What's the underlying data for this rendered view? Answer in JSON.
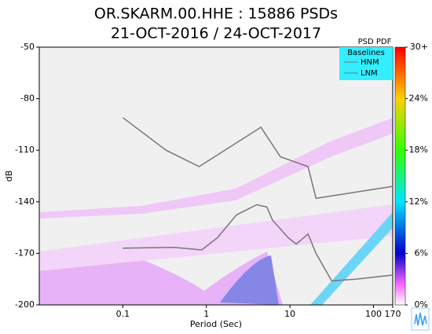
{
  "chart_data": {
    "type": "line",
    "title": "OR.SKARM.00.HHE : 15886 PSDs",
    "subtitle": "21-OCT-2016 / 24-OCT-2017",
    "x_label": "Period (Sec)",
    "y_label": "dB",
    "log_x": true,
    "xlim": [
      0.01,
      170
    ],
    "xticks": [
      0.1,
      1,
      10,
      100,
      170
    ],
    "ylim": [
      -200,
      -50
    ],
    "yticks": [
      -50,
      -80,
      -110,
      -140,
      -170,
      -200
    ],
    "legend_header": "PSD PDF",
    "legend_title": "Baselines",
    "legend_position": "upper right",
    "series": [
      {
        "name": "HNM",
        "color": "#777777",
        "x": [
          0.1,
          0.33,
          0.82,
          4.5,
          7.7,
          16.5,
          20.5,
          170
        ],
        "values": [
          -91,
          -110,
          -119.5,
          -96.6,
          -113.8,
          -119.5,
          -138,
          -131
        ]
      },
      {
        "name": "LNM",
        "color": "#777777",
        "x": [
          0.1,
          0.41,
          0.88,
          1.35,
          2.3,
          4.0,
          5.3,
          6.2,
          9.6,
          11.9,
          16.5,
          20.5,
          31.6,
          61,
          170
        ],
        "values": [
          -167,
          -166.5,
          -168,
          -161,
          -147.6,
          -141.7,
          -143,
          -150.7,
          -161,
          -164.6,
          -158.7,
          -170,
          -186,
          -185,
          -182.6
        ]
      }
    ],
    "clim": [
      0,
      30
    ],
    "colorbar_ticks": [
      {
        "value": 0,
        "label": "0%"
      },
      {
        "value": 6,
        "label": "6%"
      },
      {
        "value": 12,
        "label": "12%"
      },
      {
        "value": 18,
        "label": "18%"
      },
      {
        "value": 24,
        "label": "24%"
      },
      {
        "value": 30,
        "label": "30+"
      }
    ]
  }
}
